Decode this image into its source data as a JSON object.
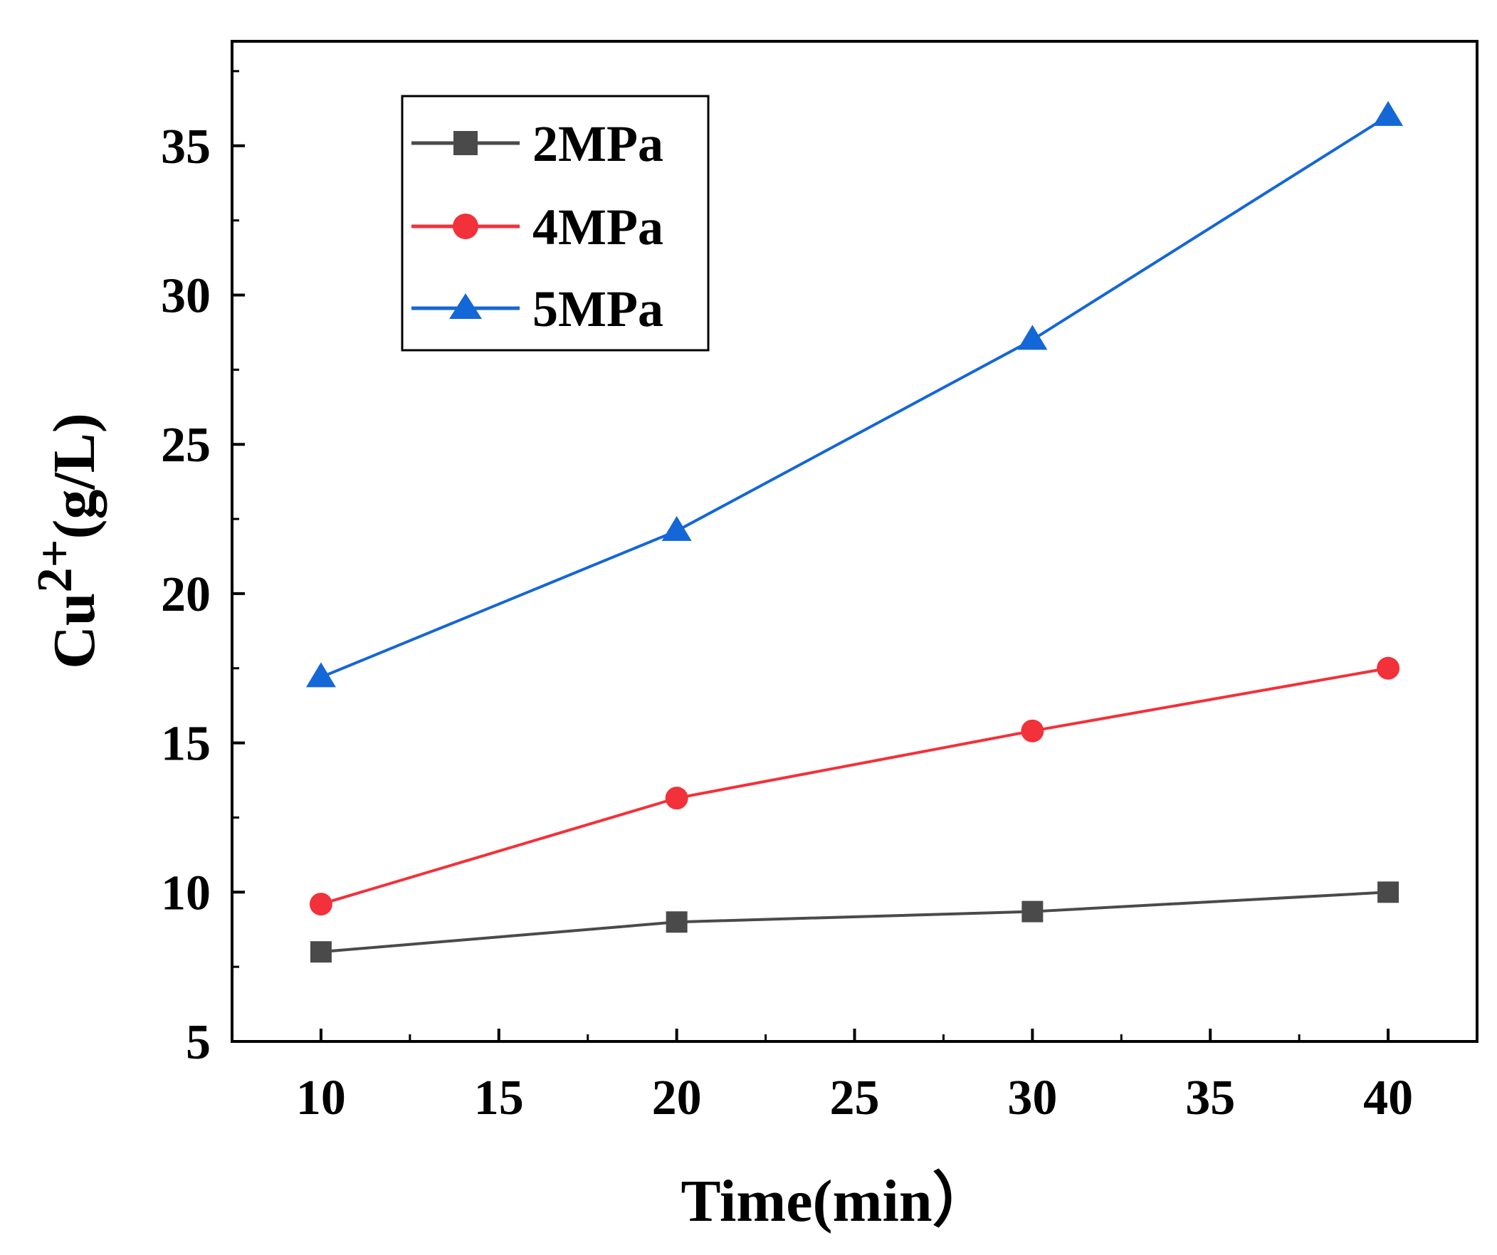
{
  "chart_data": {
    "type": "line",
    "xlabel": "Time(min）",
    "ylabel_main": "Cu",
    "ylabel_sup": "2+",
    "ylabel_unit": "(g/L)",
    "xlim": [
      7.5,
      42.5
    ],
    "ylim": [
      5,
      38.5
    ],
    "x_ticks": [
      10,
      15,
      20,
      25,
      30,
      35,
      40
    ],
    "y_ticks": [
      5,
      10,
      15,
      20,
      25,
      30,
      35
    ],
    "x": [
      10,
      20,
      30,
      40
    ],
    "legend_position": "top-left",
    "series": [
      {
        "name": "2MPa",
        "color": "#4a4a4a",
        "marker": "square",
        "values": [
          8.0,
          9.0,
          9.35,
          10.0
        ]
      },
      {
        "name": "4MPa",
        "color": "#f2313a",
        "marker": "circle",
        "values": [
          9.6,
          13.15,
          15.4,
          17.5
        ]
      },
      {
        "name": "5MPa",
        "color": "#1467d6",
        "marker": "triangle",
        "values": [
          17.2,
          22.1,
          28.5,
          36.0
        ]
      }
    ]
  }
}
